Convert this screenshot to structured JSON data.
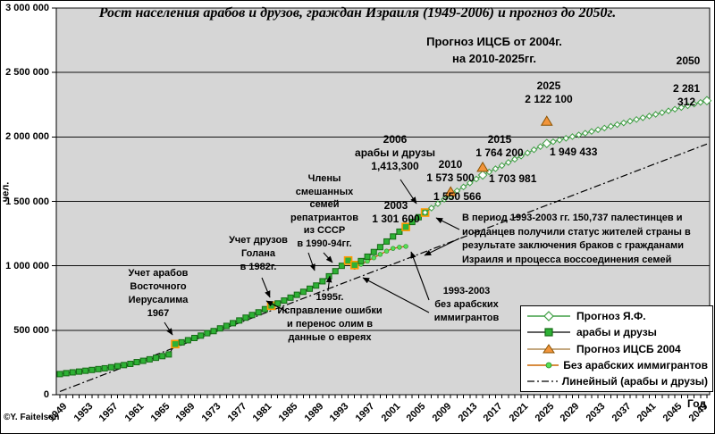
{
  "chart": {
    "title": "Рост населения арабов и друзов, граждан Израиля (1949-2006) и прогноз до 2050г.",
    "xlabel": "Год",
    "ylabel": "чел.",
    "copyright": "©Y. Faitelson"
  },
  "chart_data": {
    "type": "line",
    "title": "Рост населения арабов и друзов, граждан Израиля (1949-2006) и прогноз до 2050г.",
    "xlabel": "Год",
    "ylabel": "чел.",
    "xlim": [
      1949,
      2050
    ],
    "ylim": [
      0,
      3000000
    ],
    "plot_bg": "#d6d6d6",
    "grid": "horizontal",
    "legend_position": "bottom-right",
    "x_tick_labels": [
      "1949",
      "1953",
      "1957",
      "1961",
      "1965",
      "1969",
      "1973",
      "1977",
      "1981",
      "1985",
      "1989",
      "1993",
      "1997",
      "2001",
      "2005",
      "2009",
      "2013",
      "2017",
      "2021",
      "2025",
      "2029",
      "2033",
      "2037",
      "2041",
      "2045",
      "2049"
    ],
    "y_ticks": [
      {
        "v": 0,
        "label": "0"
      },
      {
        "v": 500000,
        "label": "500 000"
      },
      {
        "v": 1000000,
        "label": "1 000 000"
      },
      {
        "v": 1500000,
        "label": "1 500 000"
      },
      {
        "v": 2000000,
        "label": "2 000 000"
      },
      {
        "v": 2500000,
        "label": "2 500 000"
      },
      {
        "v": 3000000,
        "label": "3 000 000"
      }
    ],
    "series": [
      {
        "name": "арабы и друзы",
        "style": "line+square",
        "line_color": "#000000",
        "marker_fill": "#2eb135",
        "marker_edge": "#156b15",
        "highlight_edge": "#ff9900",
        "highlight_years": [
          1967,
          1982,
          1994,
          1995,
          2003,
          2006
        ],
        "points": [
          [
            1949,
            160000
          ],
          [
            1950,
            167100
          ],
          [
            1951,
            173400
          ],
          [
            1952,
            179300
          ],
          [
            1953,
            185800
          ],
          [
            1954,
            192000
          ],
          [
            1955,
            198600
          ],
          [
            1956,
            204900
          ],
          [
            1957,
            213100
          ],
          [
            1958,
            221500
          ],
          [
            1959,
            229800
          ],
          [
            1960,
            239100
          ],
          [
            1961,
            252600
          ],
          [
            1962,
            262900
          ],
          [
            1963,
            274600
          ],
          [
            1964,
            286500
          ],
          [
            1965,
            299300
          ],
          [
            1966,
            312500
          ],
          [
            1967,
            392700
          ],
          [
            1968,
            406300
          ],
          [
            1969,
            422800
          ],
          [
            1970,
            440000
          ],
          [
            1971,
            458500
          ],
          [
            1972,
            477300
          ],
          [
            1973,
            493600
          ],
          [
            1974,
            514500
          ],
          [
            1975,
            533800
          ],
          [
            1976,
            555000
          ],
          [
            1977,
            575900
          ],
          [
            1978,
            597700
          ],
          [
            1979,
            618400
          ],
          [
            1980,
            639000
          ],
          [
            1981,
            663600
          ],
          [
            1982,
            690400
          ],
          [
            1983,
            708100
          ],
          [
            1984,
            730400
          ],
          [
            1985,
            753100
          ],
          [
            1986,
            775200
          ],
          [
            1987,
            798300
          ],
          [
            1988,
            822400
          ],
          [
            1989,
            847000
          ],
          [
            1990,
            880100
          ],
          [
            1991,
            918700
          ],
          [
            1992,
            958000
          ],
          [
            1993,
            1000000
          ],
          [
            1994,
            1041000
          ],
          [
            1995,
            1006000
          ],
          [
            1996,
            1037000
          ],
          [
            1997,
            1071000
          ],
          [
            1998,
            1107000
          ],
          [
            1999,
            1145000
          ],
          [
            2000,
            1188700
          ],
          [
            2001,
            1227500
          ],
          [
            2002,
            1265000
          ],
          [
            2003,
            1301600
          ],
          [
            2004,
            1340000
          ],
          [
            2005,
            1377100
          ],
          [
            2006,
            1413300
          ]
        ]
      },
      {
        "name": "Без арабских иммигрантов",
        "style": "line+dot",
        "line_color": "#cc6600",
        "marker_fill": "#55e055",
        "points": [
          [
            1993,
            996000
          ],
          [
            1994,
            1026000
          ],
          [
            1995,
            989000
          ],
          [
            1996,
            1012000
          ],
          [
            1997,
            1036000
          ],
          [
            1998,
            1062000
          ],
          [
            1999,
            1089000
          ],
          [
            2000,
            1114000
          ],
          [
            2001,
            1135000
          ],
          [
            2002,
            1144000
          ],
          [
            2003,
            1150863
          ]
        ]
      },
      {
        "name": "Прогноз Я.Ф.",
        "style": "line+diamond",
        "line_color": "#3f9e44",
        "marker_fill": "#ffffff",
        "anchors": [
          [
            2006,
            1413300
          ],
          [
            2010,
            1550566
          ],
          [
            2015,
            1703981
          ],
          [
            2025,
            1949433
          ],
          [
            2050,
            2281312
          ]
        ]
      },
      {
        "name": "Прогноз ИЦСБ 2004",
        "style": "triangle",
        "marker_fill": "#f2953b",
        "marker_edge": "#8a5200",
        "points": [
          [
            2010,
            1573500
          ],
          [
            2015,
            1764200
          ],
          [
            2025,
            2122100
          ]
        ]
      },
      {
        "name": "Линейный (арабы и друзы)",
        "style": "dashdot",
        "line_color": "#000000",
        "points": [
          [
            1949,
            25000
          ],
          [
            2050,
            1945000
          ]
        ]
      }
    ]
  },
  "legend": {
    "items": [
      {
        "label": "Прогноз Я.Ф."
      },
      {
        "label": "арабы и друзы"
      },
      {
        "label": "Прогноз ИЦСБ 2004"
      },
      {
        "label": "Без арабских иммигрантов"
      },
      {
        "label": "Линейный (арабы и друзы)"
      }
    ]
  },
  "annotations": {
    "note": {
      "text": "Прогноз ИЦСБ от 2004г.\nна 2010-2025гг."
    },
    "y2050": {
      "text": "2050"
    },
    "v2050": {
      "text": "2 281 312"
    },
    "cbs2025": {
      "text": "2025\n2 122 100"
    },
    "cbs2015": {
      "text": "2015\n1 764 200"
    },
    "cbs2010": {
      "text": "2010\n1 573 500"
    },
    "yf2025": {
      "text": "1 949 433"
    },
    "yf2015": {
      "text": "1 703 981"
    },
    "yf2010": {
      "text": "1 550 566"
    },
    "v2006": {
      "text": "2006\nарабы и друзы\n1,413,300"
    },
    "v2003": {
      "text": "2003\n1 301 600"
    },
    "ussr": {
      "text": "Члены\nсмешанных\nсемей\nрепатриантов\nиз СССР\nв 1990-94гг."
    },
    "golan": {
      "text": "Учет друзов\nГолана\nв 1982г."
    },
    "jerusalem": {
      "text": "Учет арабов\nВосточного\nИерусалима\n1967"
    },
    "fix1995": {
      "text": "1995г.\nИсправление ошибки\nи перенос олим в\nданные о евреях"
    },
    "noimm": {
      "text": "1993-2003\nбез арабских\nиммигрантов"
    },
    "period": {
      "text": "В период 1993-2003 гг. 150,737 палестинцев и\nиорданцев получили статус жителей страны в\nрезультате заключения браков с гражданами\nИзраиля и процесса воссоединения семей"
    }
  }
}
